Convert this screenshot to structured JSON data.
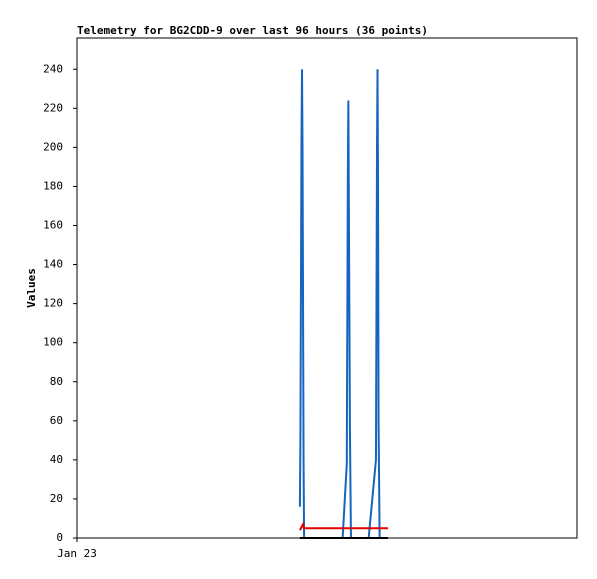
{
  "chart_data": {
    "type": "line",
    "title": "Telemetry for BG2CDD-9 over last 96 hours (36 points)",
    "y_label": "Values",
    "x": [
      42.8,
      42.9,
      43.0,
      43.1,
      43.2,
      43.3,
      43.4,
      43.5,
      43.6,
      43.8,
      44.0,
      45,
      46,
      47,
      48,
      49,
      50,
      51,
      51.8,
      51.9,
      52.0,
      52.1,
      52.2,
      52.4,
      52.6,
      54,
      56,
      57.4,
      57.5,
      57.6,
      57.7,
      57.8,
      57.9,
      58.1,
      58.4,
      59.7
    ],
    "series": [
      {
        "color": "#1565c0",
        "values": [
          16,
          54,
          128,
          202,
          240,
          200,
          120,
          40,
          0,
          0,
          0,
          0,
          0,
          0,
          0,
          0,
          0,
          0,
          38,
          112,
          186,
          224,
          168,
          56,
          0,
          0,
          0,
          40,
          120,
          200,
          240,
          180,
          60,
          0,
          0,
          0
        ]
      },
      {
        "color": "#e00000",
        "values": [
          4,
          4.5,
          5,
          5.5,
          6,
          6.5,
          7,
          6,
          5,
          5,
          5,
          5,
          5,
          5,
          5,
          5,
          5,
          5,
          5,
          5,
          5,
          5,
          5,
          5,
          5,
          5,
          5,
          5,
          5,
          5,
          5,
          5,
          5,
          5,
          5,
          5
        ]
      },
      {
        "color": "#000000",
        "values": [
          0,
          0,
          0,
          0,
          0,
          0,
          0,
          0,
          0,
          0,
          0,
          0,
          0,
          0,
          0,
          0,
          0,
          0,
          0,
          0,
          0,
          0,
          0,
          0,
          0,
          0,
          0,
          0,
          0,
          0,
          0,
          0,
          0,
          0,
          0,
          0
        ]
      }
    ],
    "xlim": [
      0,
      96
    ],
    "xticks": [
      {
        "value": 0,
        "label": "Jan 23"
      }
    ],
    "ylim": [
      0,
      256
    ],
    "yticks": [
      0,
      20,
      40,
      60,
      80,
      100,
      120,
      140,
      160,
      180,
      200,
      220,
      240
    ]
  }
}
